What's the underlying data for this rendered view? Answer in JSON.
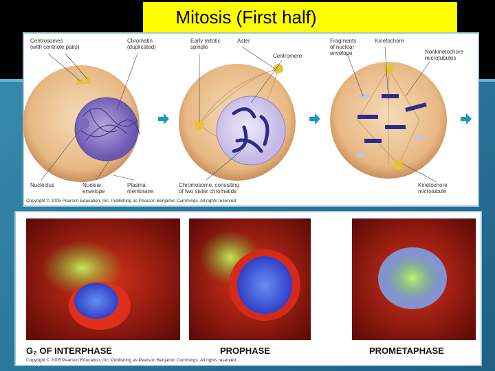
{
  "header": {
    "title": "Mitosis (First half)"
  },
  "diagram": {
    "labels": [
      [
        "Centrosomes",
        "(with centriole pairs)"
      ],
      [
        "Chromatin",
        "(duplicated)"
      ],
      [
        "Early mitotic",
        "spindle"
      ],
      [
        "Aster"
      ],
      [
        "Centromere"
      ],
      [
        "Fragments",
        "of nuclear",
        "envelope"
      ],
      [
        "Kinetochore"
      ],
      [
        "Nonkinetochore",
        "microtubules"
      ],
      [
        "Nucleolus"
      ],
      [
        "Nuclear",
        "envelope"
      ],
      [
        "Plasma",
        "membrane"
      ],
      [
        "Chromosome, consisting",
        "of two sister chromatids"
      ],
      [
        "Kinetochore",
        "microtubule"
      ]
    ],
    "copyright": "Copyright © 2005 Pearson Education, Inc. Publishing as Pearson Benjamin Cummings. All rights reserved."
  },
  "micrographs": {
    "phases": [
      "G₂ OF INTERPHASE",
      "PROPHASE",
      "PROMETAPHASE"
    ],
    "copyright": "Copyright © 2005 Pearson Education, Inc. Publishing as Pearson Benjamin Cummings. All rights reserved."
  }
}
